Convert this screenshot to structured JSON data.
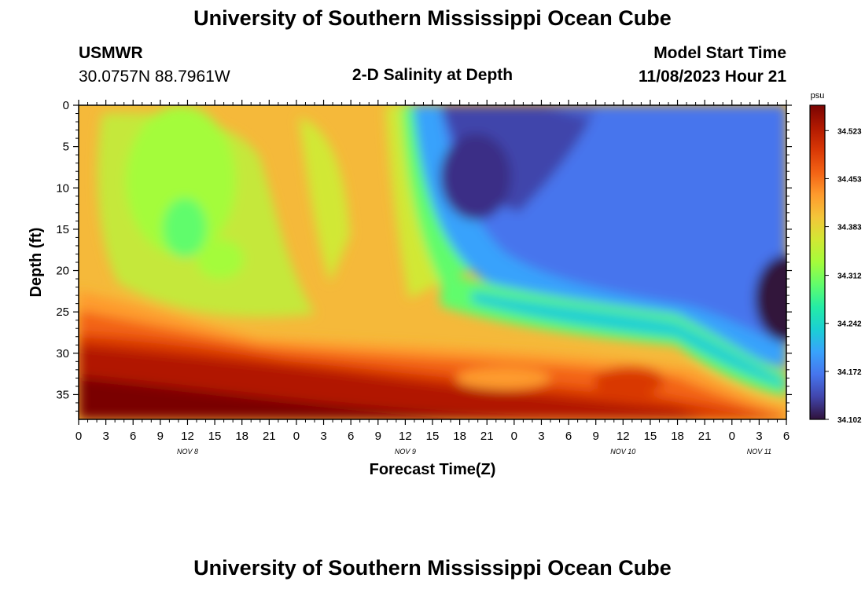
{
  "header": {
    "title": "University of Southern Mississippi Ocean Cube",
    "station_id": "USMWR",
    "station_coords": "30.0757N  88.7961W",
    "plot_title": "2-D Salinity at Depth",
    "model_start_label": "Model Start Time",
    "model_start_value": "11/08/2023 Hour 21"
  },
  "footer": {
    "title": "University of Southern Mississippi Ocean Cube"
  },
  "colors": {
    "scale": [
      "#30123b",
      "#4145ab",
      "#4675ed",
      "#39a2fc",
      "#1bcfd4",
      "#24eca6",
      "#61fc6c",
      "#a4fc3b",
      "#d1e834",
      "#f3c63a",
      "#fe9b2d",
      "#f36315",
      "#d93806",
      "#b11901",
      "#7a0403"
    ]
  },
  "chart_data": {
    "type": "heatmap",
    "title": "2-D Salinity at Depth",
    "xlabel": "Forecast Time(Z)",
    "ylabel": "Depth (ft)",
    "x_tick_labels": [
      "0",
      "3",
      "6",
      "9",
      "12",
      "15",
      "18",
      "21",
      "0",
      "3",
      "6",
      "9",
      "12",
      "15",
      "18",
      "21",
      "0",
      "3",
      "6",
      "9",
      "12",
      "15",
      "18",
      "21",
      "0",
      "3",
      "6"
    ],
    "x_date_labels": [
      {
        "label": "NOV 8",
        "tick_index": 4
      },
      {
        "label": "NOV 9",
        "tick_index": 12
      },
      {
        "label": "NOV 10",
        "tick_index": 20
      },
      {
        "label": "NOV 11",
        "tick_index": 25
      }
    ],
    "y_ticks": [
      0,
      5,
      10,
      15,
      20,
      25,
      30,
      35
    ],
    "ylim": [
      0,
      38
    ],
    "colorbar": {
      "unit": "psu",
      "ticks": [
        "34.523",
        "34.453",
        "34.383",
        "34.312",
        "34.242",
        "34.172",
        "34.102"
      ],
      "range": [
        34.102,
        34.56
      ]
    },
    "grid": false
  }
}
